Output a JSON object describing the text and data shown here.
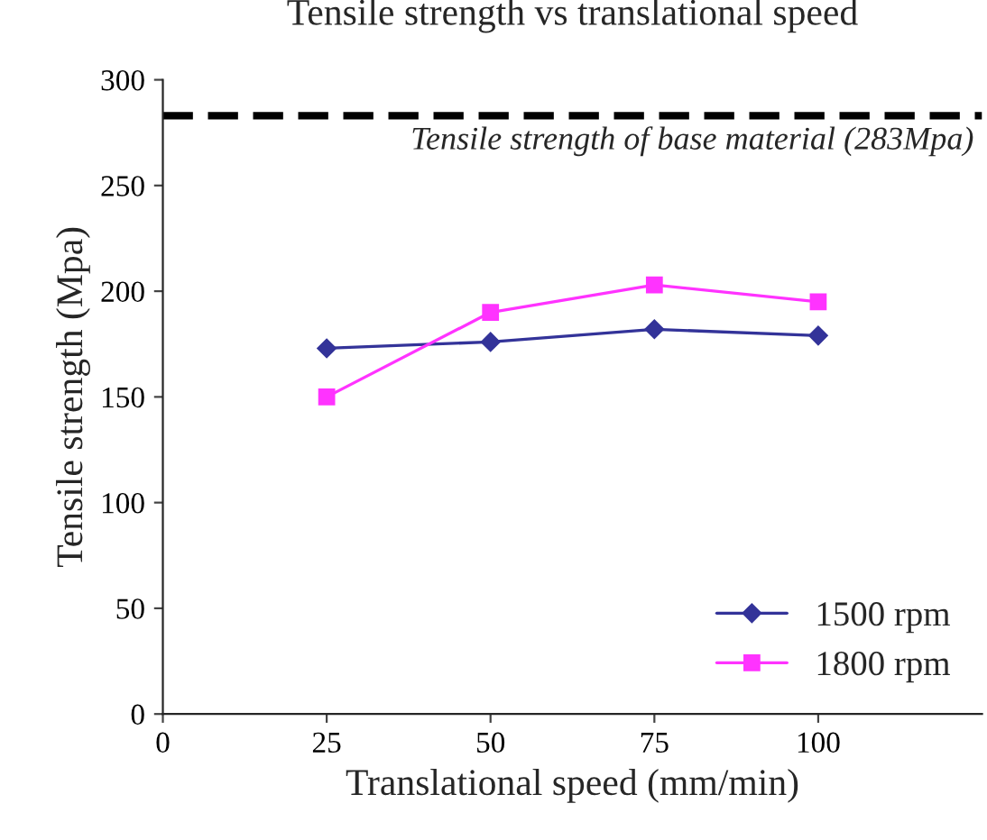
{
  "chart_data": {
    "type": "line",
    "title": "Tensile strength vs translational speed",
    "xlabel": "Translational speed (mm/min)",
    "ylabel": "Tensile strength (Mpa)",
    "x": [
      25,
      50,
      75,
      100
    ],
    "series": [
      {
        "name": "1500 rpm",
        "color": "#333399",
        "marker": "diamond",
        "values": [
          173,
          176,
          182,
          179
        ]
      },
      {
        "name": "1800 rpm",
        "color": "#ff33ff",
        "marker": "square",
        "values": [
          150,
          190,
          203,
          195
        ]
      }
    ],
    "xlim": [
      0,
      125
    ],
    "xticks": [
      0,
      25,
      50,
      75,
      100
    ],
    "ylim": [
      0,
      300
    ],
    "yticks": [
      0,
      50,
      100,
      150,
      200,
      250,
      300
    ],
    "ref_lines": [
      {
        "axis": "y",
        "value": 283,
        "label": "Tensile strength of base material (283Mpa)",
        "color": "#000000",
        "line_style": "dashed"
      }
    ],
    "grid": false,
    "legend": "bottom right",
    "line_style": "solid"
  }
}
